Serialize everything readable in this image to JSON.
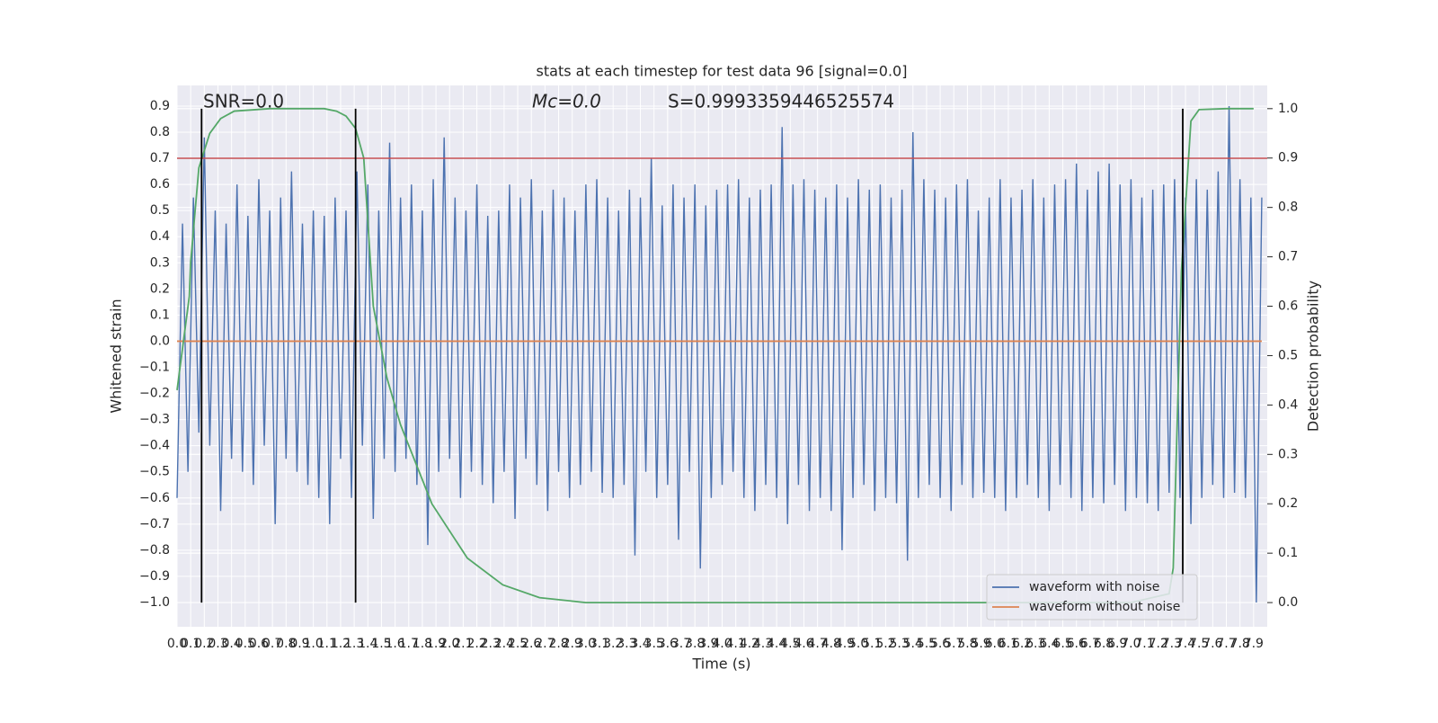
{
  "chart_data": {
    "type": "line",
    "title": "stats at each timestep for test data 96 [signal=0.0]",
    "xlabel": "Time (s)",
    "ylabel": "Whitened strain",
    "y2label": "Detection probability",
    "annotations": [
      "SNR=0.0",
      "Mc=0.0",
      "S=0.9993359446525574"
    ],
    "xlim": [
      0,
      8.0
    ],
    "ylim": [
      -1.093,
      0.979
    ],
    "y2lim": [
      -0.049,
      1.047
    ],
    "grid": true,
    "legend": "lower right",
    "xticks": [
      {
        "value": 0,
        "label": "0.0"
      },
      0.1,
      0.2,
      0.3,
      0.4,
      0.5,
      0.6,
      0.7,
      0.8,
      0.9,
      {
        "value": 1,
        "label": "1.0"
      },
      1.1,
      1.2,
      1.3,
      1.4,
      1.5,
      1.6,
      1.7,
      1.8,
      1.9,
      {
        "value": 2,
        "label": "2.0"
      },
      2.1,
      2.2,
      2.3,
      2.4,
      2.5,
      2.6,
      2.7,
      2.8,
      2.9,
      {
        "value": 3,
        "label": "3.0"
      },
      3.1,
      3.2,
      3.3,
      3.4,
      3.5,
      3.6,
      3.7,
      3.8,
      3.9,
      {
        "value": 4,
        "label": "4.0"
      },
      4.1,
      4.2,
      4.3,
      4.4,
      4.5,
      4.6,
      4.7,
      4.8,
      4.9,
      {
        "value": 5,
        "label": "5.0"
      },
      5.1,
      5.2,
      5.3,
      5.4,
      5.5,
      5.6,
      5.7,
      5.8,
      5.9,
      {
        "value": 6,
        "label": "6.0"
      },
      6.1,
      6.2,
      6.3,
      6.4,
      6.5,
      6.6,
      6.7,
      6.8,
      6.9,
      {
        "value": 7,
        "label": "7.0"
      },
      7.1,
      7.2,
      7.3,
      7.4,
      7.5,
      7.6,
      7.7,
      7.8,
      7.9
    ],
    "yticks": [
      {
        "value": -1,
        "label": "−1.0"
      },
      {
        "value": -0.9,
        "label": "−0.9"
      },
      {
        "value": -0.8,
        "label": "−0.8"
      },
      {
        "value": -0.7,
        "label": "−0.7"
      },
      {
        "value": -0.6,
        "label": "−0.6"
      },
      {
        "value": -0.5,
        "label": "−0.5"
      },
      {
        "value": -0.4,
        "label": "−0.4"
      },
      {
        "value": -0.3,
        "label": "−0.3"
      },
      {
        "value": -0.2,
        "label": "−0.2"
      },
      {
        "value": -0.1,
        "label": "−0.1"
      },
      {
        "value": 0,
        "label": "0.0"
      },
      0.1,
      0.2,
      0.3,
      0.4,
      0.5,
      0.6,
      0.7,
      0.8,
      0.9
    ],
    "y2ticks": [
      {
        "value": 0,
        "label": "0.0"
      },
      0.1,
      0.2,
      0.3,
      0.4,
      0.5,
      0.6,
      0.7,
      0.8,
      0.9,
      {
        "value": 1,
        "label": "1.0"
      }
    ],
    "hlines": [
      {
        "value": 0.7,
        "color": "#c44e52"
      }
    ],
    "vlines": [
      {
        "x": 0.18,
        "ymin": 0,
        "ymax": 1,
        "axis": "y2",
        "color": "#000000"
      },
      {
        "x": 1.31,
        "ymin": 0,
        "ymax": 1,
        "axis": "y2",
        "color": "#000000"
      },
      {
        "x": 7.38,
        "ymin": 0,
        "ymax": 1,
        "axis": "y2",
        "color": "#000000"
      }
    ],
    "series": [
      {
        "name": "waveform with noise",
        "color": "#4c72b0",
        "x": [
          0,
          0.04,
          0.08,
          0.12,
          0.16,
          0.2,
          0.24,
          0.28,
          0.32,
          0.36,
          0.4,
          0.44,
          0.48,
          0.52,
          0.56,
          0.6,
          0.64,
          0.68,
          0.72,
          0.76,
          0.8,
          0.84,
          0.88,
          0.92,
          0.96,
          1,
          1.04,
          1.08,
          1.12,
          1.16,
          1.2,
          1.24,
          1.28,
          1.32,
          1.36,
          1.4,
          1.44,
          1.48,
          1.52,
          1.56,
          1.6,
          1.64,
          1.68,
          1.72,
          1.76,
          1.8,
          1.84,
          1.88,
          1.92,
          1.96,
          2,
          2.04,
          2.08,
          2.12,
          2.16,
          2.2,
          2.24,
          2.28,
          2.32,
          2.36,
          2.4,
          2.44,
          2.48,
          2.52,
          2.56,
          2.6,
          2.64,
          2.68,
          2.72,
          2.76,
          2.8,
          2.84,
          2.88,
          2.92,
          2.96,
          3,
          3.04,
          3.08,
          3.12,
          3.16,
          3.2,
          3.24,
          3.28,
          3.32,
          3.36,
          3.4,
          3.44,
          3.48,
          3.52,
          3.56,
          3.6,
          3.64,
          3.68,
          3.72,
          3.76,
          3.8,
          3.84,
          3.88,
          3.92,
          3.96,
          4,
          4.04,
          4.08,
          4.12,
          4.16,
          4.2,
          4.24,
          4.28,
          4.32,
          4.36,
          4.4,
          4.44,
          4.48,
          4.52,
          4.56,
          4.6,
          4.64,
          4.68,
          4.72,
          4.76,
          4.8,
          4.84,
          4.88,
          4.92,
          4.96,
          5,
          5.04,
          5.08,
          5.12,
          5.16,
          5.2,
          5.24,
          5.28,
          5.32,
          5.36,
          5.4,
          5.44,
          5.48,
          5.52,
          5.56,
          5.6,
          5.64,
          5.68,
          5.72,
          5.76,
          5.8,
          5.84,
          5.88,
          5.92,
          5.96,
          6,
          6.04,
          6.08,
          6.12,
          6.16,
          6.2,
          6.24,
          6.28,
          6.32,
          6.36,
          6.4,
          6.44,
          6.48,
          6.52,
          6.56,
          6.6,
          6.64,
          6.68,
          6.72,
          6.76,
          6.8,
          6.84,
          6.88,
          6.92,
          6.96,
          7,
          7.04,
          7.08,
          7.12,
          7.16,
          7.2,
          7.24,
          7.28,
          7.32,
          7.36,
          7.4,
          7.44,
          7.48,
          7.52,
          7.56,
          7.6,
          7.64,
          7.68,
          7.72,
          7.76,
          7.8,
          7.84,
          7.88,
          7.92,
          7.96
        ],
        "values": [
          -0.6,
          0.45,
          -0.5,
          0.55,
          -0.35,
          0.78,
          -0.4,
          0.5,
          -0.65,
          0.45,
          -0.45,
          0.6,
          -0.5,
          0.48,
          -0.55,
          0.62,
          -0.4,
          0.5,
          -0.7,
          0.55,
          -0.45,
          0.65,
          -0.5,
          0.45,
          -0.55,
          0.5,
          -0.6,
          0.48,
          -0.7,
          0.55,
          -0.45,
          0.5,
          -0.6,
          0.65,
          -0.4,
          0.6,
          -0.68,
          0.5,
          -0.45,
          0.76,
          -0.5,
          0.55,
          -0.45,
          0.6,
          -0.55,
          0.5,
          -0.78,
          0.62,
          -0.5,
          0.78,
          -0.45,
          0.55,
          -0.6,
          0.5,
          -0.5,
          0.6,
          -0.55,
          0.48,
          -0.62,
          0.5,
          -0.5,
          0.6,
          -0.68,
          0.55,
          -0.45,
          0.62,
          -0.55,
          0.5,
          -0.65,
          0.58,
          -0.5,
          0.55,
          -0.6,
          0.5,
          -0.55,
          0.6,
          -0.5,
          0.62,
          -0.58,
          0.55,
          -0.6,
          0.5,
          -0.55,
          0.58,
          -0.82,
          0.55,
          -0.5,
          0.7,
          -0.6,
          0.52,
          -0.55,
          0.6,
          -0.76,
          0.55,
          -0.5,
          0.6,
          -0.87,
          0.52,
          -0.6,
          0.58,
          -0.55,
          0.6,
          -0.5,
          0.62,
          -0.6,
          0.55,
          -0.65,
          0.58,
          -0.55,
          0.6,
          -0.6,
          0.82,
          -0.7,
          0.6,
          -0.55,
          0.62,
          -0.65,
          0.58,
          -0.6,
          0.55,
          -0.65,
          0.6,
          -0.8,
          0.55,
          -0.6,
          0.62,
          -0.55,
          0.58,
          -0.65,
          0.6,
          -0.6,
          0.55,
          -0.62,
          0.58,
          -0.84,
          0.8,
          -0.6,
          0.62,
          -0.55,
          0.58,
          -0.6,
          0.55,
          -0.65,
          0.6,
          -0.55,
          0.62,
          -0.6,
          0.5,
          -0.58,
          0.55,
          -0.6,
          0.62,
          -0.65,
          0.55,
          -0.6,
          0.58,
          -0.55,
          0.62,
          -0.6,
          0.55,
          -0.65,
          0.6,
          -0.55,
          0.62,
          -0.6,
          0.68,
          -0.65,
          0.58,
          -0.6,
          0.65,
          -0.62,
          0.68,
          -0.55,
          0.6,
          -0.65,
          0.62,
          -0.6,
          0.55,
          -0.62,
          0.58,
          -0.65,
          0.6,
          -0.58,
          0.62,
          -0.6,
          0.55,
          -0.7,
          0.62,
          -0.6,
          0.58,
          -0.55,
          0.65,
          -0.6,
          0.9,
          -0.58,
          0.62,
          -0.6,
          0.55,
          -1.0,
          0.55
        ]
      },
      {
        "name": "waveform without noise",
        "color": "#dd8452",
        "x": [
          0,
          7.96
        ],
        "values": [
          0,
          0
        ]
      },
      {
        "color": "#55a868",
        "axis": "y2",
        "x": [
          0,
          0.09,
          0.1,
          0.16,
          0.24,
          0.32,
          0.42,
          0.68,
          1.08,
          1.17,
          1.24,
          1.31,
          1.37,
          1.44,
          1.54,
          1.64,
          1.87,
          2.13,
          2.39,
          2.66,
          3.0,
          4.0,
          5.0,
          6.0,
          7.0,
          7.28,
          7.31,
          7.37,
          7.44,
          7.5,
          7.7,
          7.9
        ],
        "values": [
          0.43,
          0.62,
          0.69,
          0.88,
          0.95,
          0.98,
          0.995,
          1.0,
          1.0,
          0.995,
          0.985,
          0.96,
          0.9,
          0.6,
          0.455,
          0.36,
          0.2,
          0.09,
          0.036,
          0.01,
          0.0,
          0.0,
          0.0,
          0.0,
          0.0,
          0.018,
          0.07,
          0.67,
          0.975,
          0.998,
          1.0,
          1.0
        ]
      }
    ]
  }
}
